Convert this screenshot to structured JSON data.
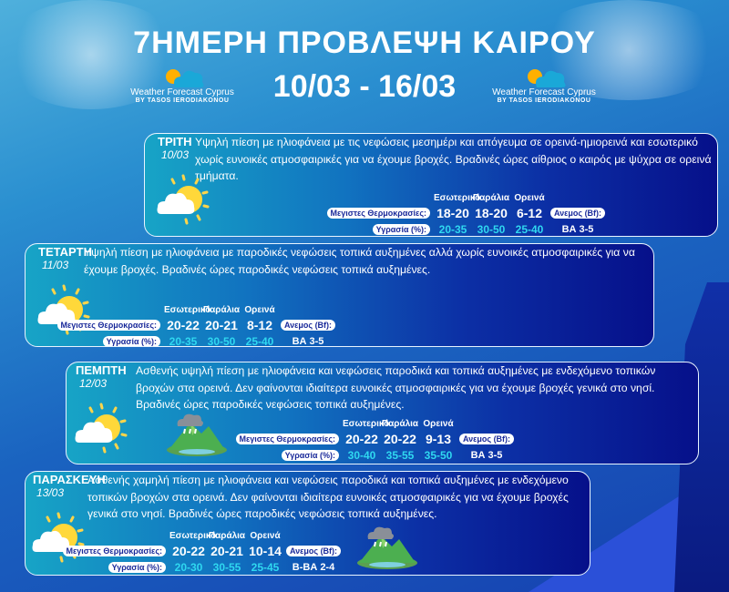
{
  "header": {
    "title": "7ΗΜΕΡΗ ΠΡΟΒΛΕΨΗ ΚΑΙΡΟΥ",
    "dates": "10/03 - 16/03"
  },
  "logo": {
    "name": "Weather Forecast Cyprus",
    "byline": "BY TASOS IERODIAKONOU"
  },
  "labels": {
    "inland": "Εσωτερικό",
    "coast": "Παράλια",
    "mountains": "Ορεινά",
    "max_temps": "Μεγιστες Θερμοκρασίες:",
    "humidity": "Υγρασία (%):",
    "wind": "Ανεμος (Bf):"
  },
  "colors": {
    "card_start": "#17a4c6",
    "card_end": "#06108a",
    "humidity_value": "#2fd8f0"
  },
  "days": [
    {
      "day": "ΤΡΙΤΗ",
      "date": "10/03",
      "icon": "sun-cloud-icon",
      "text": "Υψηλή πίεση με ηλιοφάνεια με τις νεφώσεις μεσημέρι και απόγευμα σε ορεινά-ημιορεινά και εσωτερικό χωρίς ευνοικές ατμοσφαιρικές για να έχουμε βροχές. Βραδινές ώρες αίθριος ο καιρός με ψύχρα σε ορεινά τμήματα.",
      "temps": [
        "18-20",
        "18-20",
        "6-12"
      ],
      "humidity": [
        "20-35",
        "30-50",
        "25-40"
      ],
      "wind": "ΒΑ 3-5"
    },
    {
      "day": "ΤΕΤΑΡΤΗ",
      "date": "11/03",
      "icon": "sun-cloud-icon",
      "text": "Υψηλή πίεση με ηλιοφάνεια με παροδικές νεφώσεις τοπικά αυξημένες αλλά χωρίς ευνοικές ατμοσφαιρικές για να έχουμε βροχές. Βραδινές ώρες παροδικές νεφώσεις τοπικά αυξημένες.",
      "temps": [
        "20-22",
        "20-21",
        "8-12"
      ],
      "humidity": [
        "20-35",
        "30-50",
        "25-40"
      ],
      "wind": "ΒΑ 3-5"
    },
    {
      "day": "ΠΕΜΠΤΗ",
      "date": "12/03",
      "icon": "sun-cloud-icon",
      "text": "Ασθενής υψηλή πίεση με ηλιοφάνεια και νεφώσεις παροδικά και τοπικά αυξημένες με ενδεχόμενο τοπικών βροχών στα ορεινά. Δεν φαίνονται ιδιαίτερα ευνοικές ατμοσφαιρικές για να έχουμε βροχές γενικά στο νησί. Βραδινές ώρες παροδικές νεφώσεις τοπικά αυξημένες.",
      "temps": [
        "20-22",
        "20-22",
        "9-13"
      ],
      "humidity": [
        "30-40",
        "35-55",
        "35-50"
      ],
      "wind": "ΒΑ 3-5"
    },
    {
      "day": "ΠΑΡΑΣΚΕΥΗ",
      "date": "13/03",
      "icon": "sun-cloud-icon",
      "text": "Ασθενής χαμηλή πίεση με ηλιοφάνεια και νεφώσεις παροδικά και τοπικά αυξημένες με ενδεχόμενο τοπικών βροχών στα ορεινά. Δεν φαίνονται ιδιαίτερα ευνοικές ατμοσφαιρικές για να έχουμε βροχές γενικά στο νησί. Βραδινές ώρες παροδικές νεφώσεις τοπικά αυξημένες.",
      "temps": [
        "20-22",
        "20-21",
        "10-14"
      ],
      "humidity": [
        "20-30",
        "30-55",
        "25-45"
      ],
      "wind": "Β-ΒΑ 2-4"
    }
  ]
}
